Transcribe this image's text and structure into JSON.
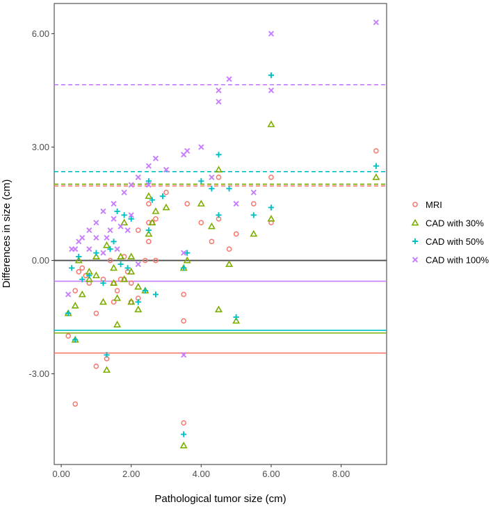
{
  "chart_data": {
    "type": "scatter",
    "xlabel": "Pathological tumor size (cm)",
    "ylabel": "Differences in size (cm)",
    "xlim": [
      -0.2,
      9.3
    ],
    "ylim": [
      -5.4,
      6.8
    ],
    "x_ticks": [
      0,
      2,
      4,
      6,
      8
    ],
    "x_tick_labels": [
      "0.00",
      "2.00",
      "4.00",
      "6.00",
      "8.00"
    ],
    "y_ticks": [
      -3,
      0,
      3,
      6
    ],
    "y_tick_labels": [
      "-3.00",
      "0.00",
      "3.00",
      "6.00"
    ],
    "zero_line": 0,
    "legend_position": "right",
    "series": [
      {
        "name": "MRI",
        "color": "#F8766D",
        "marker": "circle",
        "mean_line": -2.45,
        "upper_limit": 1.97,
        "points": [
          [
            0.2,
            -2.0
          ],
          [
            0.4,
            -3.8
          ],
          [
            0.4,
            -0.8
          ],
          [
            0.5,
            -0.3
          ],
          [
            0.6,
            -0.2
          ],
          [
            0.7,
            -0.4
          ],
          [
            0.8,
            -0.6
          ],
          [
            1.0,
            -1.4
          ],
          [
            1.0,
            -2.8
          ],
          [
            1.2,
            -0.5
          ],
          [
            1.3,
            -2.6
          ],
          [
            1.4,
            0.0
          ],
          [
            1.5,
            -0.6
          ],
          [
            1.5,
            -1.1
          ],
          [
            1.6,
            -0.8
          ],
          [
            1.7,
            -0.5
          ],
          [
            1.8,
            0.1
          ],
          [
            1.8,
            -0.5
          ],
          [
            1.9,
            -0.3
          ],
          [
            2.0,
            -0.6
          ],
          [
            2.0,
            -1.1
          ],
          [
            2.2,
            -1.0
          ],
          [
            2.2,
            0.8
          ],
          [
            2.4,
            0.0
          ],
          [
            2.5,
            0.5
          ],
          [
            2.5,
            1.0
          ],
          [
            2.5,
            1.5
          ],
          [
            2.6,
            1.0
          ],
          [
            2.7,
            1.1
          ],
          [
            2.7,
            0.0
          ],
          [
            3.0,
            1.8
          ],
          [
            3.5,
            -4.3
          ],
          [
            3.5,
            -1.6
          ],
          [
            3.5,
            -0.9
          ],
          [
            3.6,
            1.5
          ],
          [
            4.0,
            1.0
          ],
          [
            4.3,
            0.5
          ],
          [
            4.5,
            2.2
          ],
          [
            4.5,
            1.1
          ],
          [
            4.8,
            0.3
          ],
          [
            5.0,
            0.7
          ],
          [
            5.5,
            1.5
          ],
          [
            6.0,
            2.2
          ],
          [
            6.0,
            1.0
          ],
          [
            9.0,
            2.9
          ]
        ]
      },
      {
        "name": "CAD with 30%",
        "color": "#7CAE00",
        "marker": "triangle",
        "mean_line": -1.92,
        "upper_limit": 2.02,
        "points": [
          [
            0.2,
            -1.4
          ],
          [
            0.4,
            -2.1
          ],
          [
            0.4,
            -1.2
          ],
          [
            0.5,
            0.0
          ],
          [
            0.6,
            -0.9
          ],
          [
            0.8,
            -0.3
          ],
          [
            0.8,
            -0.5
          ],
          [
            1.0,
            -0.4
          ],
          [
            1.0,
            0.1
          ],
          [
            1.2,
            -1.1
          ],
          [
            1.3,
            -2.9
          ],
          [
            1.3,
            0.4
          ],
          [
            1.5,
            -0.6
          ],
          [
            1.5,
            -0.2
          ],
          [
            1.6,
            -1.7
          ],
          [
            1.6,
            -1.0
          ],
          [
            1.7,
            0.1
          ],
          [
            1.8,
            1.0
          ],
          [
            1.8,
            -0.5
          ],
          [
            2.0,
            -0.3
          ],
          [
            2.0,
            -1.1
          ],
          [
            2.0,
            0.1
          ],
          [
            2.2,
            -1.3
          ],
          [
            2.2,
            -0.7
          ],
          [
            2.4,
            -0.8
          ],
          [
            2.5,
            0.7
          ],
          [
            2.5,
            1.7
          ],
          [
            2.6,
            1.0
          ],
          [
            2.7,
            1.3
          ],
          [
            3.0,
            1.4
          ],
          [
            3.5,
            -4.9
          ],
          [
            3.5,
            -0.2
          ],
          [
            3.6,
            0.0
          ],
          [
            4.0,
            1.5
          ],
          [
            4.3,
            0.9
          ],
          [
            4.5,
            2.4
          ],
          [
            4.5,
            -1.3
          ],
          [
            4.8,
            -0.1
          ],
          [
            5.0,
            -1.6
          ],
          [
            5.5,
            0.7
          ],
          [
            6.0,
            3.6
          ],
          [
            6.0,
            1.1
          ],
          [
            9.0,
            2.2
          ]
        ]
      },
      {
        "name": "CAD with 50%",
        "color": "#00BFC4",
        "marker": "plus",
        "mean_line": -1.85,
        "upper_limit": 2.35,
        "points": [
          [
            0.2,
            -1.4
          ],
          [
            0.3,
            -0.2
          ],
          [
            0.4,
            -2.1
          ],
          [
            0.5,
            0.1
          ],
          [
            0.6,
            -0.5
          ],
          [
            0.8,
            -0.4
          ],
          [
            1.0,
            0.2
          ],
          [
            1.2,
            -0.6
          ],
          [
            1.3,
            -2.5
          ],
          [
            1.4,
            0.3
          ],
          [
            1.5,
            0.5
          ],
          [
            1.6,
            1.3
          ],
          [
            1.7,
            -0.1
          ],
          [
            1.8,
            1.2
          ],
          [
            1.9,
            -0.2
          ],
          [
            2.0,
            1.1
          ],
          [
            2.2,
            -1.1
          ],
          [
            2.4,
            -0.8
          ],
          [
            2.5,
            0.8
          ],
          [
            2.5,
            2.1
          ],
          [
            2.6,
            1.6
          ],
          [
            2.7,
            -0.9
          ],
          [
            2.9,
            1.7
          ],
          [
            3.5,
            -4.6
          ],
          [
            3.5,
            -0.2
          ],
          [
            3.6,
            0.2
          ],
          [
            4.0,
            2.1
          ],
          [
            4.3,
            1.9
          ],
          [
            4.5,
            2.8
          ],
          [
            4.5,
            1.2
          ],
          [
            4.8,
            1.9
          ],
          [
            5.0,
            -1.5
          ],
          [
            5.5,
            1.2
          ],
          [
            6.0,
            4.9
          ],
          [
            6.0,
            1.4
          ],
          [
            9.0,
            2.5
          ]
        ]
      },
      {
        "name": "CAD with 100%",
        "color": "#C77CFF",
        "marker": "cross",
        "mean_line": -0.55,
        "upper_limit": 4.65,
        "points": [
          [
            0.2,
            -0.9
          ],
          [
            0.3,
            0.3
          ],
          [
            0.4,
            0.3
          ],
          [
            0.5,
            0.5
          ],
          [
            0.6,
            0.6
          ],
          [
            0.8,
            0.8
          ],
          [
            0.8,
            0.3
          ],
          [
            1.0,
            1.0
          ],
          [
            1.0,
            0.6
          ],
          [
            1.2,
            1.3
          ],
          [
            1.2,
            0.2
          ],
          [
            1.3,
            0.6
          ],
          [
            1.4,
            0.8
          ],
          [
            1.5,
            1.5
          ],
          [
            1.5,
            1.1
          ],
          [
            1.6,
            0.3
          ],
          [
            1.7,
            0.9
          ],
          [
            1.8,
            1.8
          ],
          [
            1.9,
            0.8
          ],
          [
            2.0,
            2.0
          ],
          [
            2.0,
            1.2
          ],
          [
            2.2,
            2.2
          ],
          [
            2.2,
            -0.1
          ],
          [
            2.5,
            2.5
          ],
          [
            2.5,
            2.0
          ],
          [
            2.7,
            2.7
          ],
          [
            3.0,
            2.4
          ],
          [
            3.5,
            2.8
          ],
          [
            3.6,
            2.9
          ],
          [
            3.5,
            0.2
          ],
          [
            3.5,
            -2.5
          ],
          [
            4.0,
            3.0
          ],
          [
            4.3,
            2.2
          ],
          [
            4.5,
            4.2
          ],
          [
            4.5,
            4.5
          ],
          [
            4.8,
            4.8
          ],
          [
            5.0,
            1.5
          ],
          [
            5.5,
            1.8
          ],
          [
            6.0,
            6.0
          ],
          [
            6.0,
            4.5
          ],
          [
            9.0,
            6.3
          ]
        ]
      }
    ]
  }
}
